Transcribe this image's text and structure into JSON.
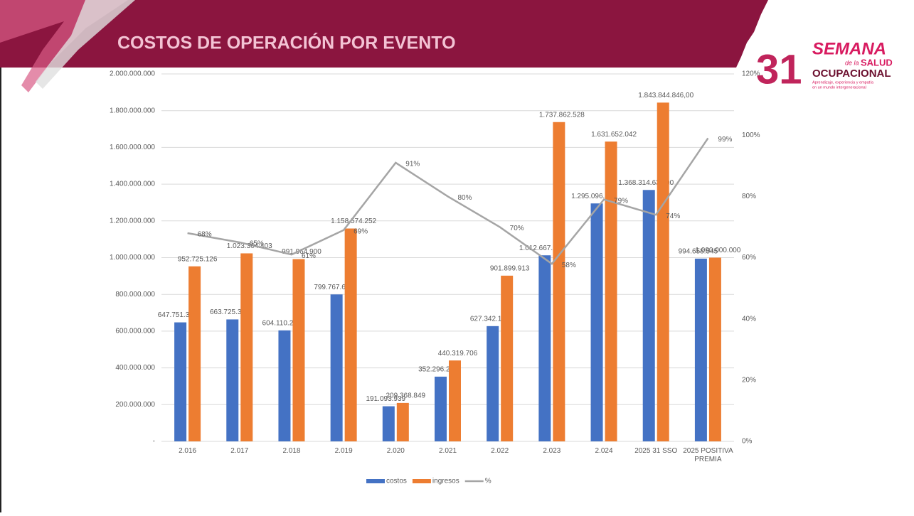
{
  "chart_data": {
    "type": "bar-line",
    "title": "COSTOS DE OPERACIÓN POR EVENTO",
    "categories": [
      "2.016",
      "2.017",
      "2.018",
      "2.019",
      "2.020",
      "2.021",
      "2.022",
      "2.023",
      "2.024",
      "2025 31 SSO",
      "2025 POSITIVA PREMIA"
    ],
    "series": [
      {
        "name": "costos",
        "color": "#4472c4",
        "type": "bar",
        "values": [
          647751349,
          663725397,
          604110250,
          799767632,
          191093939,
          352296211,
          627342152,
          1012667361,
          1295096836,
          1368314632,
          994658545
        ],
        "value_labels": [
          "647.751.349",
          "663.725.397",
          "604.110.250",
          "799.767.632",
          "191.093.939",
          "352.296.211",
          "627.342.152",
          "1.012.667.361",
          "1.295.096.836",
          "1.368.314.632,00",
          "994.658.545"
        ]
      },
      {
        "name": "ingresos",
        "color": "#ed7d31",
        "type": "bar",
        "values": [
          952725126,
          1023364403,
          991964900,
          1158574252,
          209368849,
          440319706,
          901899913,
          1737862528,
          1631652042,
          1843844846,
          1000000000
        ],
        "value_labels": [
          "952.725.126",
          "1.023.364.403",
          "991.964.900",
          "1.158.574.252",
          "209.368.849",
          "440.319.706",
          "901.899.913",
          "1.737.862.528",
          "1.631.652.042",
          "1.843.844.846,00",
          "1.000.000.000"
        ]
      },
      {
        "name": "%",
        "color": "#a5a5a5",
        "type": "line",
        "axis": "y2",
        "values": [
          68,
          65,
          61,
          69,
          91,
          80,
          70,
          58,
          79,
          74,
          99
        ],
        "value_labels": [
          "68%",
          "65%",
          "61%",
          "69%",
          "91%",
          "80%",
          "70%",
          "58%",
          "79%",
          "74%",
          "99%"
        ]
      }
    ],
    "ylim": [
      0,
      2000000000
    ],
    "yticks": [
      {
        "value": 0,
        "label": "-"
      },
      {
        "value": 200000000,
        "label": "200.000.000"
      },
      {
        "value": 400000000,
        "label": "400.000.000"
      },
      {
        "value": 600000000,
        "label": "600.000.000"
      },
      {
        "value": 800000000,
        "label": "800.000.000"
      },
      {
        "value": 1000000000,
        "label": "1.000.000.000"
      },
      {
        "value": 1200000000,
        "label": "1.200.000.000"
      },
      {
        "value": 1400000000,
        "label": "1.400.000.000"
      },
      {
        "value": 1600000000,
        "label": "1.600.000.000"
      },
      {
        "value": 1800000000,
        "label": "1.800.000.000"
      },
      {
        "value": 2000000000,
        "label": "2.000.000.000"
      }
    ],
    "y2lim": [
      0,
      120
    ],
    "y2ticks": [
      {
        "value": 0,
        "label": "0%"
      },
      {
        "value": 20,
        "label": "20%"
      },
      {
        "value": 40,
        "label": "40%"
      },
      {
        "value": 60,
        "label": "60%"
      },
      {
        "value": 80,
        "label": "80%"
      },
      {
        "value": 100,
        "label": "100%"
      },
      {
        "value": 120,
        "label": "120%"
      }
    ],
    "grid": true,
    "legend": "bottom"
  },
  "logo": {
    "number": "31",
    "word": "SEMANA",
    "de_la": "de la",
    "salud": "SALUD",
    "ocupacional": "OCUPACIONAL",
    "tagline_1": "Aprendizaje, experiencia y empatía",
    "tagline_2": "en un mundo intergeneracional"
  }
}
